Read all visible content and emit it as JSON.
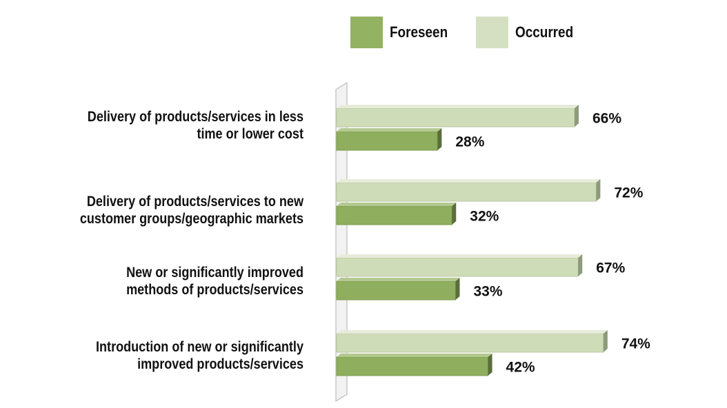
{
  "chart_data": {
    "type": "bar",
    "orientation": "horizontal",
    "categories": [
      "Delivery of products/services in less time or lower cost",
      "Delivery of products/services to new customer groups/geographic markets",
      "New or significantly improved methods of products/services",
      "Introduction of new or significantly improved products/services"
    ],
    "category_lines": [
      [
        "Delivery of products/services in less",
        "time or lower cost"
      ],
      [
        "Delivery of products/services to new",
        "customer groups/geographic markets"
      ],
      [
        "New or significantly improved",
        "methods of products/services"
      ],
      [
        "Introduction of new or significantly",
        "improved products/services"
      ]
    ],
    "series": [
      {
        "name": "Occurred",
        "values": [
          66,
          72,
          67,
          74
        ],
        "color": "#cfdcb8"
      },
      {
        "name": "Foreseen",
        "values": [
          28,
          32,
          33,
          42
        ],
        "color": "#8fae5e"
      }
    ],
    "value_labels": {
      "Occurred": [
        "66%",
        "72%",
        "67%",
        "74%"
      ],
      "Foreseen": [
        "28%",
        "32%",
        "33%",
        "42%"
      ]
    },
    "legend": {
      "placement": "top",
      "entries": [
        "Foreseen",
        "Occurred"
      ]
    },
    "xlim": [
      0,
      100
    ],
    "grid": false
  }
}
